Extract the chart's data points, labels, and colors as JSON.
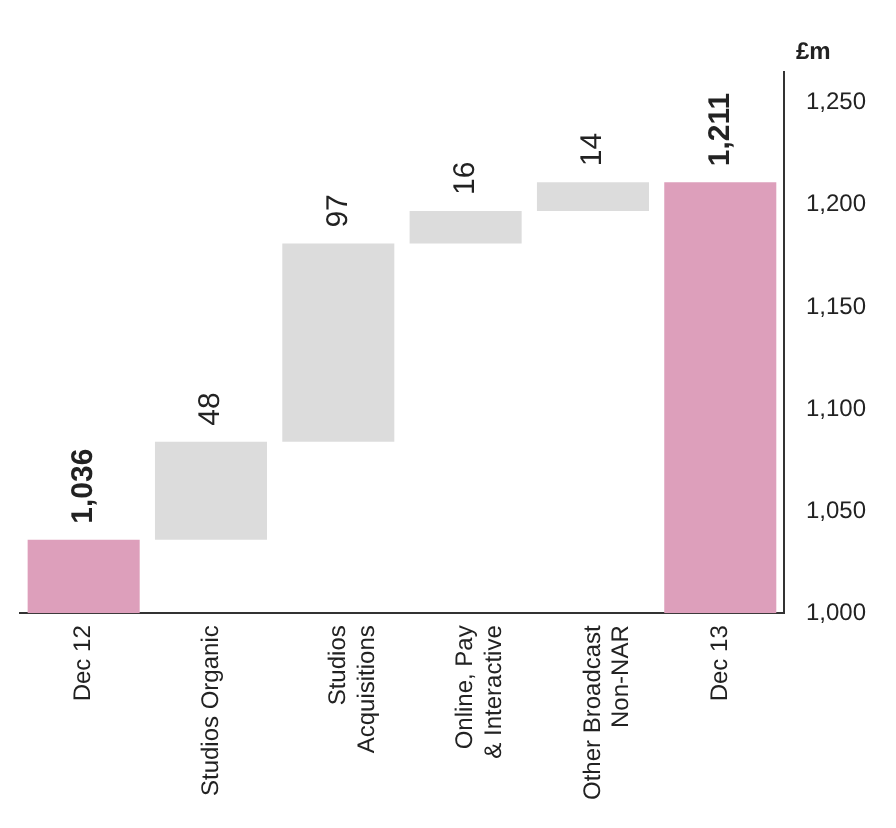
{
  "chart_data": {
    "type": "bar",
    "ylabel": "£m",
    "categories": [
      "Dec 12",
      "Studios Organic",
      "Studios\nAcquisitions",
      "Online, Pay\n& Interactive",
      "Other Broadcast\nNon-NAR",
      "Dec 13"
    ],
    "values": [
      36,
      48,
      97,
      16,
      14,
      211
    ],
    "base": [
      1000,
      1036,
      1084,
      1181,
      1197,
      1000
    ],
    "colors": [
      "#dd9fbb",
      "#dcdcdc",
      "#dcdcdc",
      "#dcdcdc",
      "#dcdcdc",
      "#dd9fbb"
    ],
    "value_labels": [
      "1,036",
      "48",
      "97",
      "16",
      "14",
      "1,211"
    ],
    "ylim": [
      1000,
      1265
    ],
    "yticks": [
      {
        "value": 1000,
        "label": "1,000"
      },
      {
        "value": 1050,
        "label": "1,050"
      },
      {
        "value": 1100,
        "label": "1,100"
      },
      {
        "value": 1150,
        "label": "1,150"
      },
      {
        "value": 1200,
        "label": "1,200"
      },
      {
        "value": 1250,
        "label": "1,250"
      }
    ],
    "grid": false,
    "legend": false
  }
}
